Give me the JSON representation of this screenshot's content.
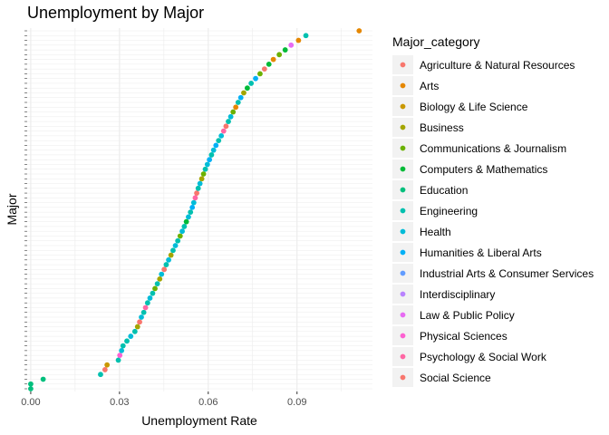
{
  "chart_data": {
    "type": "scatter",
    "title": "Unemployment by Major",
    "xlabel": "Unemployment Rate",
    "ylabel": "Major",
    "xlim": [
      -0.0012,
      0.1155
    ],
    "x_ticks": [
      {
        "value": 0.0,
        "label": "0.00"
      },
      {
        "value": 0.03,
        "label": "0.03"
      },
      {
        "value": 0.06,
        "label": "0.06"
      },
      {
        "value": 0.09,
        "label": "0.09"
      }
    ],
    "y_order": "majors sorted by unemployment rate (ascending from bottom)",
    "grid": true,
    "legend_position": "right",
    "legend": {
      "title": "Major_category",
      "entries": [
        {
          "name": "Agriculture & Natural Resources",
          "color": "#F8766D"
        },
        {
          "name": "Arts",
          "color": "#E58700"
        },
        {
          "name": "Biology & Life Science",
          "color": "#C99800"
        },
        {
          "name": "Business",
          "color": "#A3A500"
        },
        {
          "name": "Communications & Journalism",
          "color": "#6BB100"
        },
        {
          "name": "Computers & Mathematics",
          "color": "#00BA38"
        },
        {
          "name": "Education",
          "color": "#00BF7D"
        },
        {
          "name": "Engineering",
          "color": "#00C0AF"
        },
        {
          "name": "Health",
          "color": "#00BCD8"
        },
        {
          "name": "Humanities & Liberal Arts",
          "color": "#00B0F6"
        },
        {
          "name": "Industrial Arts & Consumer Services",
          "color": "#619CFF"
        },
        {
          "name": "Interdisciplinary",
          "color": "#B983FF"
        },
        {
          "name": "Law & Public Policy",
          "color": "#E76BF3"
        },
        {
          "name": "Physical Sciences",
          "color": "#FD61D1"
        },
        {
          "name": "Psychology & Social Work",
          "color": "#FF67A4"
        },
        {
          "name": "Social Science",
          "color": "#F8766D"
        }
      ]
    },
    "points": [
      {
        "x": 0.0,
        "category": "Education"
      },
      {
        "x": 0.0,
        "category": "Education"
      },
      {
        "x": 0.0042,
        "category": "Education"
      },
      {
        "x": 0.0236,
        "category": "Engineering"
      },
      {
        "x": 0.0251,
        "category": "Agriculture & Natural Resources"
      },
      {
        "x": 0.0258,
        "category": "Biology & Life Science"
      },
      {
        "x": 0.0296,
        "category": "Engineering"
      },
      {
        "x": 0.0301,
        "category": "Physical Sciences"
      },
      {
        "x": 0.0307,
        "category": "Health"
      },
      {
        "x": 0.0312,
        "category": "Engineering"
      },
      {
        "x": 0.0325,
        "category": "Engineering"
      },
      {
        "x": 0.0338,
        "category": "Health"
      },
      {
        "x": 0.0352,
        "category": "Engineering"
      },
      {
        "x": 0.0361,
        "category": "Business"
      },
      {
        "x": 0.0368,
        "category": "Agriculture & Natural Resources"
      },
      {
        "x": 0.0374,
        "category": "Health"
      },
      {
        "x": 0.0382,
        "category": "Engineering"
      },
      {
        "x": 0.0388,
        "category": "Psychology & Social Work"
      },
      {
        "x": 0.0395,
        "category": "Engineering"
      },
      {
        "x": 0.0403,
        "category": "Health"
      },
      {
        "x": 0.0412,
        "category": "Engineering"
      },
      {
        "x": 0.042,
        "category": "Communications & Journalism"
      },
      {
        "x": 0.0428,
        "category": "Engineering"
      },
      {
        "x": 0.0436,
        "category": "Business"
      },
      {
        "x": 0.0442,
        "category": "Health"
      },
      {
        "x": 0.0451,
        "category": "Agriculture & Natural Resources"
      },
      {
        "x": 0.0458,
        "category": "Engineering"
      },
      {
        "x": 0.0466,
        "category": "Health"
      },
      {
        "x": 0.0474,
        "category": "Business"
      },
      {
        "x": 0.0481,
        "category": "Engineering"
      },
      {
        "x": 0.0489,
        "category": "Health"
      },
      {
        "x": 0.0497,
        "category": "Engineering"
      },
      {
        "x": 0.0505,
        "category": "Communications & Journalism"
      },
      {
        "x": 0.0512,
        "category": "Health"
      },
      {
        "x": 0.0519,
        "category": "Engineering"
      },
      {
        "x": 0.0526,
        "category": "Computers & Mathematics"
      },
      {
        "x": 0.0533,
        "category": "Health"
      },
      {
        "x": 0.054,
        "category": "Engineering"
      },
      {
        "x": 0.0546,
        "category": "Humanities & Liberal Arts"
      },
      {
        "x": 0.0551,
        "category": "Health"
      },
      {
        "x": 0.0556,
        "category": "Psychology & Social Work"
      },
      {
        "x": 0.0561,
        "category": "Social Science"
      },
      {
        "x": 0.0566,
        "category": "Engineering"
      },
      {
        "x": 0.0572,
        "category": "Health"
      },
      {
        "x": 0.0578,
        "category": "Business"
      },
      {
        "x": 0.0584,
        "category": "Communications & Journalism"
      },
      {
        "x": 0.059,
        "category": "Engineering"
      },
      {
        "x": 0.0597,
        "category": "Health"
      },
      {
        "x": 0.0604,
        "category": "Humanities & Liberal Arts"
      },
      {
        "x": 0.0611,
        "category": "Engineering"
      },
      {
        "x": 0.0618,
        "category": "Health"
      },
      {
        "x": 0.0626,
        "category": "Humanities & Liberal Arts"
      },
      {
        "x": 0.0635,
        "category": "Engineering"
      },
      {
        "x": 0.0644,
        "category": "Health"
      },
      {
        "x": 0.0652,
        "category": "Psychology & Social Work"
      },
      {
        "x": 0.066,
        "category": "Social Science"
      },
      {
        "x": 0.0668,
        "category": "Engineering"
      },
      {
        "x": 0.0676,
        "category": "Health"
      },
      {
        "x": 0.0684,
        "category": "Communications & Journalism"
      },
      {
        "x": 0.0693,
        "category": "Arts"
      },
      {
        "x": 0.0701,
        "category": "Engineering"
      },
      {
        "x": 0.071,
        "category": "Humanities & Liberal Arts"
      },
      {
        "x": 0.072,
        "category": "Business"
      },
      {
        "x": 0.0732,
        "category": "Computers & Mathematics"
      },
      {
        "x": 0.0745,
        "category": "Engineering"
      },
      {
        "x": 0.076,
        "category": "Humanities & Liberal Arts"
      },
      {
        "x": 0.0775,
        "category": "Communications & Journalism"
      },
      {
        "x": 0.079,
        "category": "Agriculture & Natural Resources"
      },
      {
        "x": 0.0805,
        "category": "Computers & Mathematics"
      },
      {
        "x": 0.082,
        "category": "Arts"
      },
      {
        "x": 0.084,
        "category": "Communications & Journalism"
      },
      {
        "x": 0.086,
        "category": "Computers & Mathematics"
      },
      {
        "x": 0.088,
        "category": "Law & Public Policy"
      },
      {
        "x": 0.0905,
        "category": "Arts"
      },
      {
        "x": 0.093,
        "category": "Engineering"
      },
      {
        "x": 0.111,
        "category": "Arts"
      }
    ]
  }
}
